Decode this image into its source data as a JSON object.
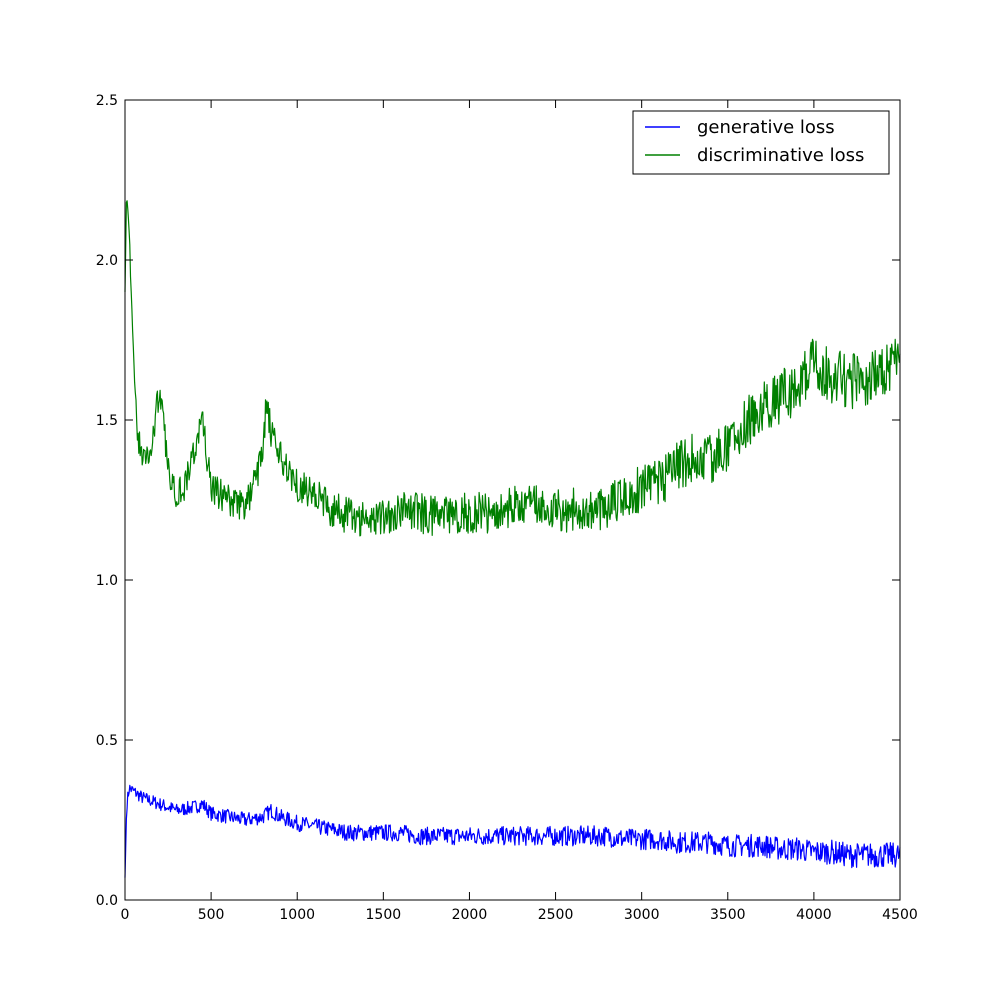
{
  "chart_data": {
    "type": "line",
    "title": "",
    "xlabel": "",
    "ylabel": "",
    "xlim": [
      0,
      4500
    ],
    "ylim": [
      0.0,
      2.5
    ],
    "grid": false,
    "legend_position": "top-right",
    "xticks": [
      0,
      500,
      1000,
      1500,
      2000,
      2500,
      3000,
      3500,
      4000,
      4500
    ],
    "xtick_labels": [
      "0",
      "500",
      "1000",
      "1500",
      "2000",
      "2500",
      "3000",
      "3500",
      "4000",
      "4500"
    ],
    "yticks": [
      0.0,
      0.5,
      1.0,
      1.5,
      2.0,
      2.5
    ],
    "ytick_labels": [
      "0.0",
      "0.5",
      "1.0",
      "1.5",
      "2.0",
      "2.5"
    ],
    "series": [
      {
        "name": "generative loss",
        "color": "#0000ff",
        "x": [
          0,
          10,
          25,
          50,
          75,
          100,
          150,
          200,
          300,
          400,
          450,
          500,
          600,
          700,
          800,
          850,
          900,
          1000,
          1100,
          1200,
          1300,
          1400,
          1500,
          1600,
          1700,
          1800,
          1900,
          2000,
          2100,
          2200,
          2300,
          2400,
          2500,
          2600,
          2700,
          2800,
          2900,
          3000,
          3100,
          3200,
          3300,
          3400,
          3500,
          3600,
          3700,
          3800,
          3900,
          4000,
          4100,
          4200,
          4300,
          4400,
          4500
        ],
        "y": [
          0.07,
          0.3,
          0.35,
          0.34,
          0.33,
          0.32,
          0.31,
          0.3,
          0.28,
          0.29,
          0.3,
          0.27,
          0.26,
          0.25,
          0.26,
          0.28,
          0.26,
          0.24,
          0.23,
          0.22,
          0.21,
          0.21,
          0.21,
          0.21,
          0.2,
          0.2,
          0.2,
          0.2,
          0.2,
          0.2,
          0.2,
          0.2,
          0.2,
          0.2,
          0.2,
          0.2,
          0.19,
          0.19,
          0.19,
          0.18,
          0.18,
          0.18,
          0.17,
          0.17,
          0.17,
          0.16,
          0.16,
          0.15,
          0.15,
          0.14,
          0.14,
          0.14,
          0.14
        ]
      },
      {
        "name": "discriminative loss",
        "color": "#008000",
        "x": [
          0,
          10,
          25,
          50,
          75,
          100,
          150,
          200,
          250,
          300,
          350,
          400,
          450,
          500,
          550,
          600,
          650,
          700,
          750,
          800,
          820,
          850,
          900,
          950,
          1000,
          1100,
          1200,
          1300,
          1400,
          1500,
          1600,
          1700,
          1800,
          1900,
          2000,
          2100,
          2200,
          2300,
          2400,
          2500,
          2600,
          2700,
          2800,
          2900,
          3000,
          3100,
          3200,
          3300,
          3400,
          3500,
          3600,
          3700,
          3800,
          3900,
          4000,
          4100,
          4200,
          4300,
          4400,
          4500
        ],
        "y": [
          1.9,
          2.25,
          2.1,
          1.65,
          1.45,
          1.38,
          1.4,
          1.6,
          1.35,
          1.27,
          1.3,
          1.4,
          1.5,
          1.28,
          1.27,
          1.25,
          1.24,
          1.23,
          1.3,
          1.4,
          1.55,
          1.45,
          1.38,
          1.35,
          1.3,
          1.27,
          1.22,
          1.2,
          1.19,
          1.2,
          1.22,
          1.21,
          1.2,
          1.2,
          1.21,
          1.21,
          1.22,
          1.23,
          1.23,
          1.22,
          1.22,
          1.22,
          1.23,
          1.27,
          1.28,
          1.3,
          1.35,
          1.38,
          1.38,
          1.42,
          1.48,
          1.55,
          1.57,
          1.6,
          1.68,
          1.64,
          1.62,
          1.63,
          1.64,
          1.7
        ]
      }
    ]
  }
}
